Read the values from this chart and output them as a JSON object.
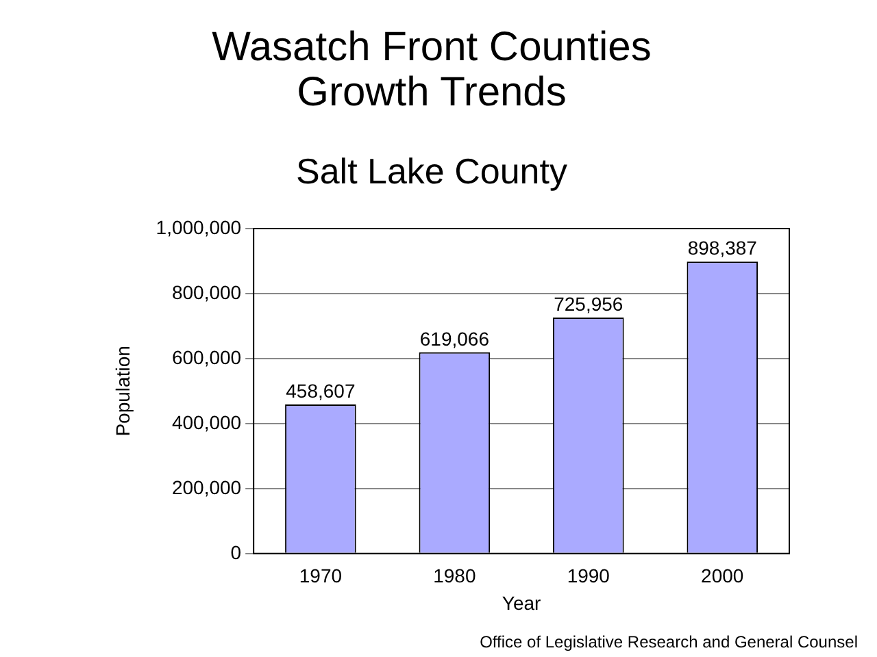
{
  "chart_data": {
    "type": "bar",
    "title": "Wasatch Front Counties Growth Trends",
    "subtitle": "Salt Lake County",
    "xlabel": "Year",
    "ylabel": "Population",
    "categories": [
      "1970",
      "1980",
      "1990",
      "2000"
    ],
    "values": [
      458607,
      619066,
      725956,
      898387
    ],
    "color": "#aaaaff",
    "value_labels": [
      "458,607",
      "619,066",
      "725,956",
      "898,387"
    ],
    "ylim": [
      0,
      1000000
    ],
    "yticks": [
      0,
      {
        "value": 200000,
        "label": "200,000"
      },
      {
        "value": 400000,
        "label": "400,000"
      },
      {
        "value": 600000,
        "label": "600,000"
      },
      {
        "value": 800000,
        "label": "800,000"
      },
      {
        "value": 1000000,
        "label": "1,000,000"
      }
    ],
    "grid": "y",
    "legend": false,
    "annotations": [
      "Office of Legislative Research and General Counsel"
    ]
  }
}
